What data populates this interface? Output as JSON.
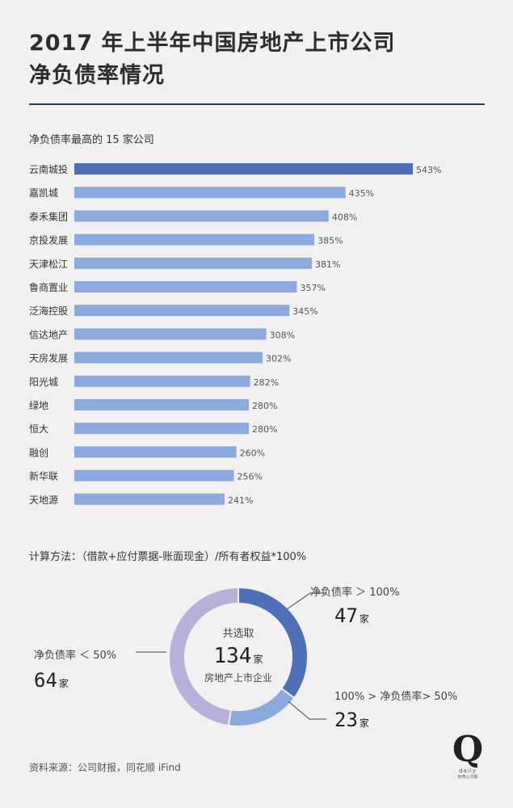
{
  "title_line1": "2017 年上半年中国房地产上市公司",
  "title_line2": "净负债率情况",
  "bar_title": "净负债率最高的 15 家公司",
  "formula": "计算方法：（借款+应付票据-账面现金）/所有者权益*100%",
  "source": "资料来源：公司财报，同花顺 iFind",
  "logo": {
    "letter": "Q",
    "word": "daily",
    "sub": "好奇心日报"
  },
  "colors": {
    "bar_top": "#4b6fb8",
    "bar": "#8caade",
    "donut_high": "#4e70b6",
    "donut_mid": "#8aa9dd",
    "donut_low": "#b7b1d9"
  },
  "chart_data": [
    {
      "type": "bar",
      "orientation": "horizontal",
      "categories": [
        "云南城投",
        "嘉凯城",
        "泰禾集团",
        "京投发展",
        "天津松江",
        "鲁商置业",
        "泛海控股",
        "信达地产",
        "天房发展",
        "阳光城",
        "绿地",
        "恒大",
        "融创",
        "新华联",
        "天地源"
      ],
      "values": [
        543,
        435,
        408,
        385,
        381,
        357,
        345,
        308,
        302,
        282,
        280,
        280,
        260,
        256,
        241
      ],
      "value_labels": [
        "543%",
        "435%",
        "408%",
        "385%",
        "381%",
        "357%",
        "345%",
        "308%",
        "302%",
        "282%",
        "280%",
        "280%",
        "260%",
        "256%",
        "241%"
      ],
      "unit": "%"
    },
    {
      "type": "pie",
      "style": "donut",
      "center_top": "共选取",
      "center_value": "134",
      "center_unit": "家",
      "center_bottom": "房地产上市企业",
      "slices": [
        {
          "label": "净负债率 ＞ 100%",
          "value": 47,
          "unit": "家"
        },
        {
          "label": "100% > 净负债率> 50%",
          "value": 23,
          "unit": "家"
        },
        {
          "label": "净负债率 ＜ 50%",
          "value": 64,
          "unit": "家"
        }
      ]
    }
  ]
}
